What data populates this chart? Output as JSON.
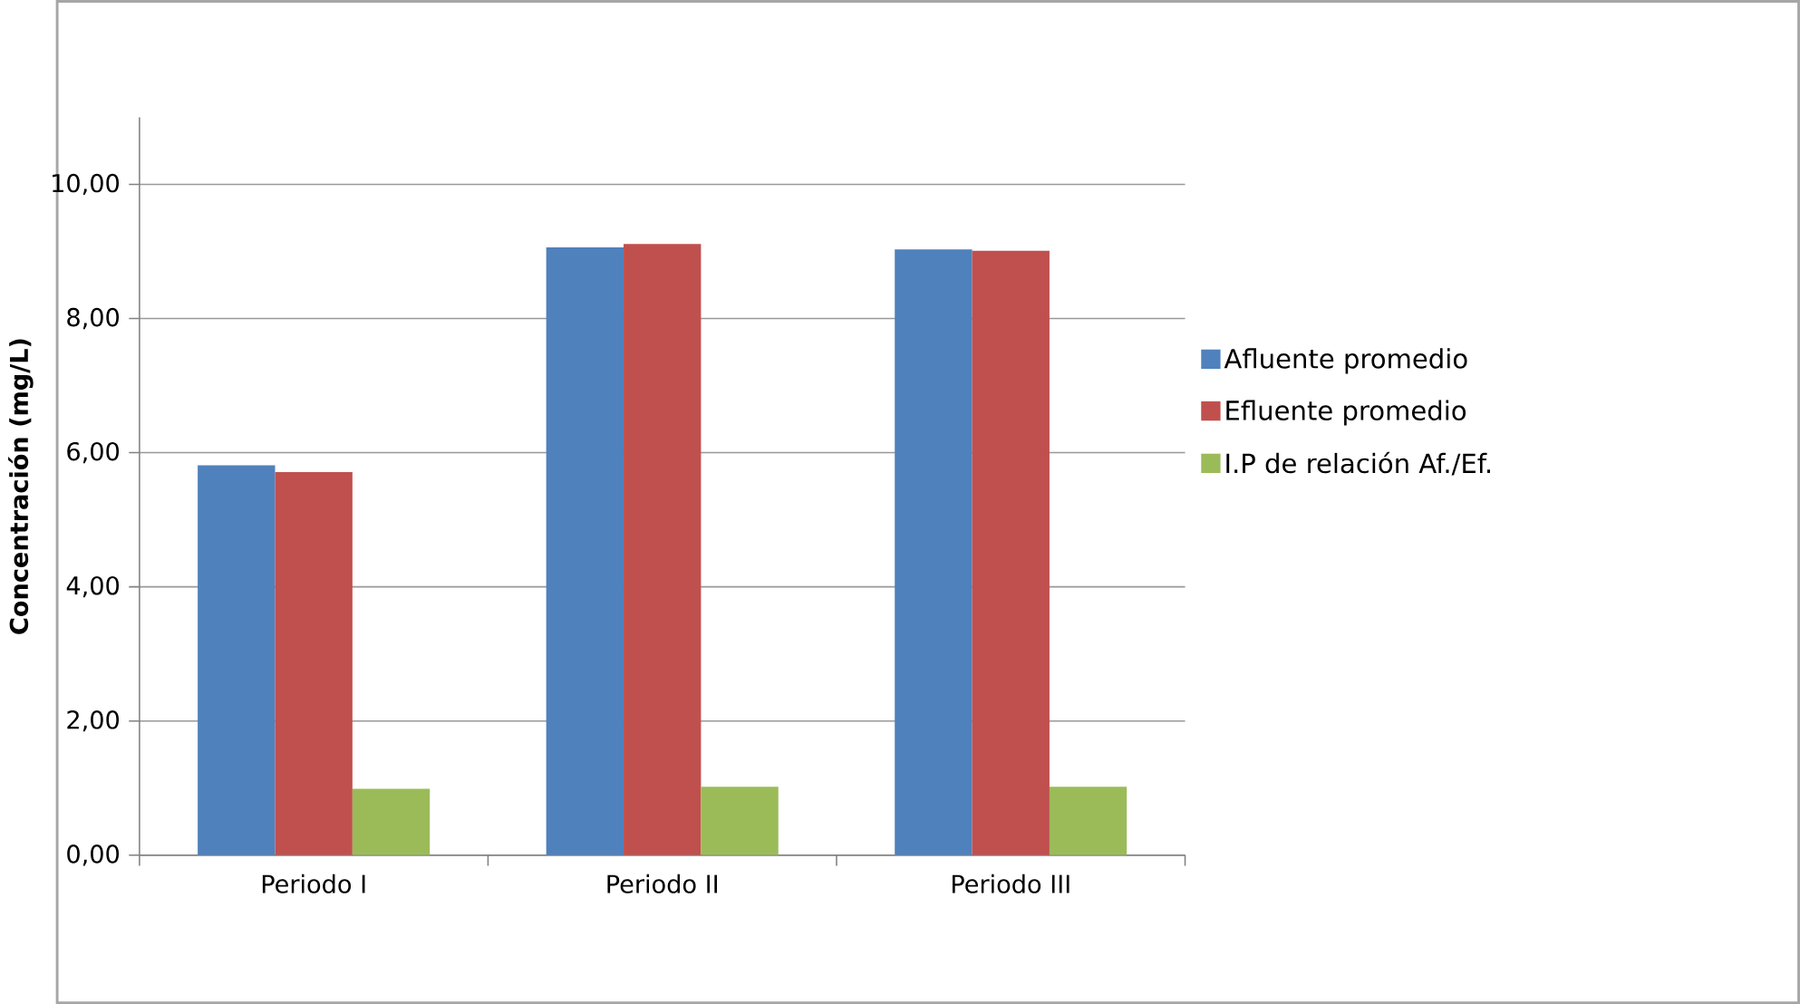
{
  "chart_data": {
    "type": "bar",
    "ylabel": "Concentración (mg/L)",
    "categories": [
      "Periodo I",
      "Periodo II",
      "Periodo III"
    ],
    "series": [
      {
        "name": "Afluente promedio",
        "color": "#4f81bd",
        "values": [
          5.81,
          9.06,
          9.03
        ]
      },
      {
        "name": "Efluente promedio",
        "color": "#c0504d",
        "values": [
          5.71,
          9.11,
          9.01
        ]
      },
      {
        "name": "I.P de relación Af./Ef.",
        "color": "#9bbb59",
        "values": [
          0.99,
          1.02,
          1.02
        ]
      }
    ],
    "ylim": [
      0,
      11
    ],
    "yticks": [
      {
        "value": 0,
        "label": "0,00"
      },
      {
        "value": 2,
        "label": "2,00"
      },
      {
        "value": 4,
        "label": "4,00"
      },
      {
        "value": 6,
        "label": "6,00"
      },
      {
        "value": 8,
        "label": "8,00"
      },
      {
        "value": 10,
        "label": "10,00"
      }
    ],
    "grid": "y",
    "legend": "right"
  }
}
